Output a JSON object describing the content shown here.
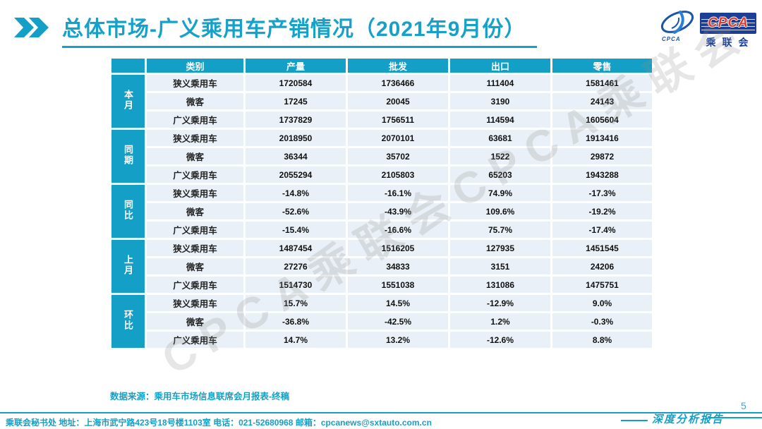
{
  "title": "总体市场-广义乘用车产销情况（2021年9月份）",
  "logo": {
    "emblem_sub": "CPCA",
    "box_text": "CPCA",
    "org_text": "乘联会",
    "navy": "#1c3e96",
    "red": "#e23b30"
  },
  "watermark_text": "CPCA乘联会CPCA乘联会",
  "chart_data": {
    "type": "table",
    "title": "总体市场-广义乘用车产销情况（2021年9月份）",
    "headers": [
      "类别",
      "产量",
      "批发",
      "出口",
      "零售"
    ],
    "groups": [
      {
        "label": "本月",
        "rows": [
          [
            "狭义乘用车",
            "1720584",
            "1736466",
            "111404",
            "1581461"
          ],
          [
            "微客",
            "17245",
            "20045",
            "3190",
            "24143"
          ],
          [
            "广义乘用车",
            "1737829",
            "1756511",
            "114594",
            "1605604"
          ]
        ]
      },
      {
        "label": "同期",
        "rows": [
          [
            "狭义乘用车",
            "2018950",
            "2070101",
            "63681",
            "1913416"
          ],
          [
            "微客",
            "36344",
            "35702",
            "1522",
            "29872"
          ],
          [
            "广义乘用车",
            "2055294",
            "2105803",
            "65203",
            "1943288"
          ]
        ]
      },
      {
        "label": "同比",
        "rows": [
          [
            "狭义乘用车",
            "-14.8%",
            "-16.1%",
            "74.9%",
            "-17.3%"
          ],
          [
            "微客",
            "-52.6%",
            "-43.9%",
            "109.6%",
            "-19.2%"
          ],
          [
            "广义乘用车",
            "-15.4%",
            "-16.6%",
            "75.7%",
            "-17.4%"
          ]
        ]
      },
      {
        "label": "上月",
        "rows": [
          [
            "狭义乘用车",
            "1487454",
            "1516205",
            "127935",
            "1451545"
          ],
          [
            "微客",
            "27276",
            "34833",
            "3151",
            "24206"
          ],
          [
            "广义乘用车",
            "1514730",
            "1551038",
            "131086",
            "1475751"
          ]
        ]
      },
      {
        "label": "环比",
        "rows": [
          [
            "狭义乘用车",
            "15.7%",
            "14.5%",
            "-12.9%",
            "9.0%"
          ],
          [
            "微客",
            "-36.8%",
            "-42.5%",
            "1.2%",
            "-0.3%"
          ],
          [
            "广义乘用车",
            "14.7%",
            "13.2%",
            "-12.6%",
            "8.8%"
          ]
        ]
      }
    ]
  },
  "source_note": "数据来源：乘用车市场信息联席会月报表-终稿",
  "footer": {
    "left_text": "乘联会秘书处   地址：上海市武宁路423号18号楼1103室   电话：021-52680968    邮箱：cpcanews@sxtauto.com.cn",
    "report_label": "深度分析报告",
    "page_number": "5"
  },
  "colors": {
    "accent_teal": "#14a0c6",
    "cell_bg": "#e9f0f7",
    "logo_navy": "#1c3e96",
    "logo_red": "#e23b30",
    "watermark_gray": "rgba(140,140,140,0.22)"
  }
}
